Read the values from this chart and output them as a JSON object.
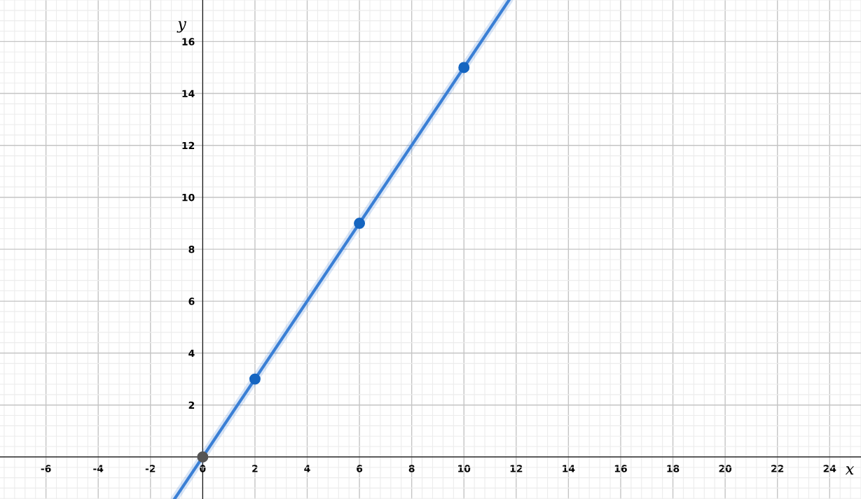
{
  "chart_data": {
    "type": "line",
    "xlabel": "x",
    "ylabel": "y",
    "xlim": [
      -7.76,
      25.2
    ],
    "ylim": [
      -1.62,
      17.6
    ],
    "xticks": [
      -6,
      -4,
      -2,
      0,
      2,
      4,
      6,
      8,
      10,
      12,
      14,
      16,
      18,
      20,
      22,
      24
    ],
    "yticks": [
      2,
      4,
      6,
      8,
      10,
      12,
      14,
      16
    ],
    "grid": true,
    "series": [
      {
        "color": "#3a7fd5",
        "x": [
          -1.08,
          11.73
        ],
        "values": [
          -1.62,
          17.6
        ],
        "line_style": "solid",
        "marker": "none"
      },
      {
        "type": "scatter",
        "colors": [
          "#555555",
          "#1565c0",
          "#1565c0",
          "#1565c0"
        ],
        "x": [
          0,
          2,
          6,
          10
        ],
        "values": [
          0,
          3,
          9,
          15
        ],
        "marker": "circle"
      }
    ]
  }
}
